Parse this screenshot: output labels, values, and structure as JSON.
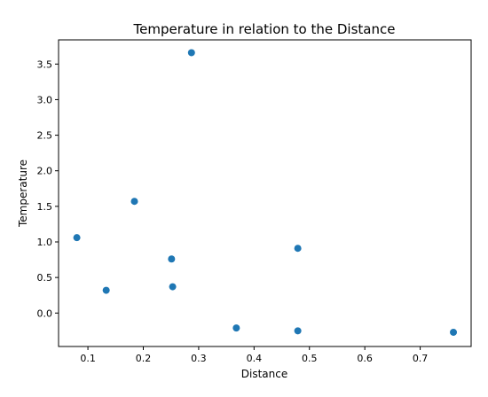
{
  "chart_data": {
    "type": "scatter",
    "title": "Temperature in relation to the Distance",
    "xlabel": "Distance",
    "ylabel": "Temperature",
    "xlim": [
      0.047,
      0.792
    ],
    "ylim": [
      -0.47,
      3.84
    ],
    "xticks": [
      "0.1",
      "0.2",
      "0.3",
      "0.4",
      "0.5",
      "0.6",
      "0.7"
    ],
    "yticks": [
      "0.0",
      "0.5",
      "1.0",
      "1.5",
      "2.0",
      "2.5",
      "3.0",
      "3.5"
    ],
    "grid": false,
    "marker_color": "#1f77b4",
    "points": [
      {
        "x": 0.08,
        "y": 1.06
      },
      {
        "x": 0.133,
        "y": 0.32
      },
      {
        "x": 0.184,
        "y": 1.57
      },
      {
        "x": 0.251,
        "y": 0.76
      },
      {
        "x": 0.253,
        "y": 0.37
      },
      {
        "x": 0.287,
        "y": 3.66
      },
      {
        "x": 0.368,
        "y": -0.21
      },
      {
        "x": 0.479,
        "y": 0.91
      },
      {
        "x": 0.479,
        "y": -0.25
      },
      {
        "x": 0.76,
        "y": -0.27
      }
    ]
  }
}
